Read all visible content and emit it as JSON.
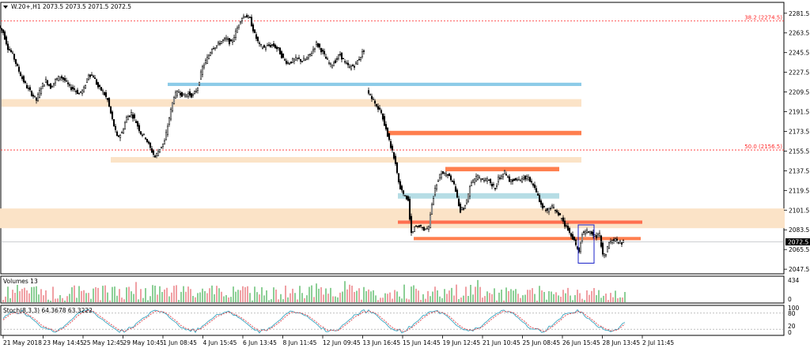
{
  "chart_data": [
    {
      "type": "candlestick",
      "title": "W.20+,H1  2073.5 2073.5 2071.5 2072.5",
      "symbol": "W.20+",
      "timeframe": "H1",
      "ohlc_last": {
        "open": 2073.5,
        "high": 2073.5,
        "low": 2071.5,
        "close": 2072.5
      },
      "current_price_label": "2072.5",
      "ylim": [
        2044,
        2290
      ],
      "y_ticks": [
        "2281.5",
        "2263.5",
        "2245.5",
        "2227.5",
        "2209.5",
        "2191.5",
        "2173.5",
        "2155.5",
        "2137.5",
        "2119.5",
        "2101.5",
        "2083.5",
        "2065.5",
        "2047.5"
      ],
      "y_tick_values": [
        2281.5,
        2263.5,
        2245.5,
        2227.5,
        2209.5,
        2191.5,
        2173.5,
        2155.5,
        2137.5,
        2119.5,
        2101.5,
        2083.5,
        2065.5,
        2047.5
      ],
      "x_ticks": [
        "21 May 2018",
        "23 May 14:45",
        "25 May 12:45",
        "29 May 10:45",
        "1 Jun 08:45",
        "4 Jun 15:45",
        "6 Jun 13:45",
        "8 Jun 11:45",
        "12 Jun 09:45",
        "13 Jun 16:45",
        "15 Jun 14:45",
        "19 Jun 12:45",
        "21 Jun 10:45",
        "25 Jun 08:45",
        "26 Jun 15:45",
        "28 Jun 13:45",
        "2 Jul 11:45"
      ],
      "path_points": [
        [
          0,
          2270
        ],
        [
          6,
          2264
        ],
        [
          12,
          2250
        ],
        [
          18,
          2244
        ],
        [
          24,
          2232
        ],
        [
          30,
          2222
        ],
        [
          36,
          2214
        ],
        [
          42,
          2208
        ],
        [
          48,
          2202
        ],
        [
          54,
          2214
        ],
        [
          60,
          2220
        ],
        [
          66,
          2214
        ],
        [
          72,
          2220
        ],
        [
          78,
          2224
        ],
        [
          84,
          2220
        ],
        [
          90,
          2214
        ],
        [
          96,
          2212
        ],
        [
          102,
          2208
        ],
        [
          108,
          2212
        ],
        [
          114,
          2226
        ],
        [
          120,
          2224
        ],
        [
          126,
          2214
        ],
        [
          132,
          2210
        ],
        [
          138,
          2202
        ],
        [
          144,
          2184
        ],
        [
          150,
          2168
        ],
        [
          156,
          2172
        ],
        [
          162,
          2186
        ],
        [
          168,
          2190
        ],
        [
          174,
          2182
        ],
        [
          180,
          2172
        ],
        [
          186,
          2168
        ],
        [
          192,
          2158
        ],
        [
          198,
          2150
        ],
        [
          204,
          2158
        ],
        [
          210,
          2164
        ],
        [
          216,
          2186
        ],
        [
          222,
          2206
        ],
        [
          228,
          2210
        ],
        [
          234,
          2206
        ],
        [
          240,
          2208
        ],
        [
          246,
          2206
        ],
        [
          252,
          2214
        ],
        [
          258,
          2232
        ],
        [
          264,
          2240
        ],
        [
          270,
          2250
        ],
        [
          276,
          2252
        ],
        [
          282,
          2256
        ],
        [
          288,
          2258
        ],
        [
          294,
          2254
        ],
        [
          300,
          2264
        ],
        [
          306,
          2276
        ],
        [
          312,
          2280
        ],
        [
          318,
          2276
        ],
        [
          324,
          2262
        ],
        [
          330,
          2252
        ],
        [
          336,
          2250
        ],
        [
          342,
          2252
        ],
        [
          348,
          2252
        ],
        [
          354,
          2248
        ],
        [
          360,
          2240
        ],
        [
          366,
          2236
        ],
        [
          372,
          2238
        ],
        [
          378,
          2240
        ],
        [
          384,
          2238
        ],
        [
          390,
          2240
        ],
        [
          396,
          2246
        ],
        [
          402,
          2254
        ],
        [
          408,
          2248
        ],
        [
          414,
          2240
        ],
        [
          420,
          2234
        ],
        [
          426,
          2238
        ],
        [
          432,
          2244
        ],
        [
          438,
          2236
        ],
        [
          444,
          2232
        ],
        [
          450,
          2234
        ],
        [
          456,
          2240
        ],
        [
          462,
          2248
        ]
      ],
      "path_points_b": [
        [
          466,
          2210
        ],
        [
          472,
          2204
        ],
        [
          478,
          2198
        ],
        [
          484,
          2190
        ],
        [
          490,
          2176
        ],
        [
          496,
          2160
        ],
        [
          502,
          2144
        ],
        [
          506,
          2126
        ],
        [
          510,
          2118
        ],
        [
          514,
          2114
        ],
        [
          518,
          2110
        ],
        [
          522,
          2080
        ],
        [
          526,
          2086
        ],
        [
          532,
          2088
        ],
        [
          538,
          2084
        ],
        [
          544,
          2086
        ],
        [
          548,
          2106
        ],
        [
          552,
          2122
        ],
        [
          556,
          2130
        ],
        [
          560,
          2136
        ],
        [
          566,
          2134
        ],
        [
          572,
          2130
        ],
        [
          576,
          2124
        ],
        [
          580,
          2112
        ],
        [
          584,
          2100
        ],
        [
          588,
          2104
        ],
        [
          592,
          2110
        ],
        [
          596,
          2122
        ],
        [
          600,
          2128
        ],
        [
          606,
          2132
        ],
        [
          612,
          2128
        ],
        [
          618,
          2130
        ],
        [
          624,
          2124
        ],
        [
          628,
          2122
        ],
        [
          632,
          2130
        ],
        [
          636,
          2134
        ],
        [
          640,
          2136
        ],
        [
          646,
          2128
        ],
        [
          652,
          2130
        ],
        [
          658,
          2128
        ],
        [
          664,
          2132
        ],
        [
          670,
          2130
        ],
        [
          676,
          2124
        ],
        [
          682,
          2114
        ],
        [
          688,
          2104
        ],
        [
          694,
          2100
        ],
        [
          700,
          2104
        ],
        [
          706,
          2100
        ],
        [
          710,
          2096
        ],
        [
          714,
          2090
        ],
        [
          718,
          2086
        ],
        [
          722,
          2082
        ],
        [
          726,
          2076
        ],
        [
          730,
          2070
        ],
        [
          734,
          2064
        ],
        [
          738,
          2080
        ],
        [
          744,
          2082
        ],
        [
          750,
          2080
        ],
        [
          756,
          2078
        ],
        [
          760,
          2080
        ],
        [
          764,
          2060
        ],
        [
          768,
          2062
        ],
        [
          772,
          2072
        ],
        [
          778,
          2074
        ],
        [
          784,
          2072
        ],
        [
          790,
          2072
        ]
      ],
      "zones": [
        {
          "kind": "band",
          "color": "#fbe3c7",
          "y1": 2203,
          "y2": 2196,
          "x1": 2,
          "x2": 735
        },
        {
          "kind": "band",
          "color": "#fbe3c7",
          "y1": 2150,
          "y2": 2145,
          "x1": 140,
          "x2": 735
        },
        {
          "kind": "band",
          "color": "#fbe3c7",
          "y1": 2103,
          "y2": 2085,
          "x1": 0,
          "x2": 992
        },
        {
          "kind": "band",
          "color": "#8ccbe8",
          "y1": 2218,
          "y2": 2215,
          "x1": 212,
          "x2": 735
        },
        {
          "kind": "band",
          "color": "#b6dde5",
          "y1": 2117,
          "y2": 2112,
          "x1": 503,
          "x2": 707
        },
        {
          "kind": "band",
          "color": "#ff7f4f",
          "y1": 2174,
          "y2": 2170,
          "x1": 491,
          "x2": 735
        },
        {
          "kind": "band",
          "color": "#ff7f4f",
          "y1": 2141,
          "y2": 2137,
          "x1": 563,
          "x2": 707
        },
        {
          "kind": "band",
          "color": "#ff6f4f",
          "y1": 2092,
          "y2": 2089,
          "x1": 503,
          "x2": 812
        },
        {
          "kind": "band",
          "color": "#ff7f4f",
          "y1": 2077,
          "y2": 2074,
          "x1": 523,
          "x2": 810
        }
      ],
      "fibo_levels": [
        {
          "label": "38.2 (2274.5)",
          "value": 2274.5,
          "color": "#ff2a2a"
        },
        {
          "label": "50.0 (2156.5)",
          "value": 2156.5,
          "color": "#ff2a2a"
        }
      ],
      "box": {
        "color": "#1a22c8",
        "y_top": 2088,
        "y_bottom": 2053
      },
      "volume_panel": {
        "label": "Volumes 13",
        "scale_ticks": [
          "434",
          "0"
        ],
        "up_color": "#1a9f2d",
        "down_color": "#e0404a",
        "max": 434
      },
      "stoch_panel": {
        "label": "Stoch(8,3,3) 64.3678 63.3222",
        "k": 64.3678,
        "d": 63.3222,
        "scale_ticks": [
          "100",
          "80",
          "20",
          "0"
        ],
        "k_color": "#3aa6c0",
        "d_color": "#e0404a",
        "levels": [
          80,
          20
        ]
      }
    }
  ]
}
